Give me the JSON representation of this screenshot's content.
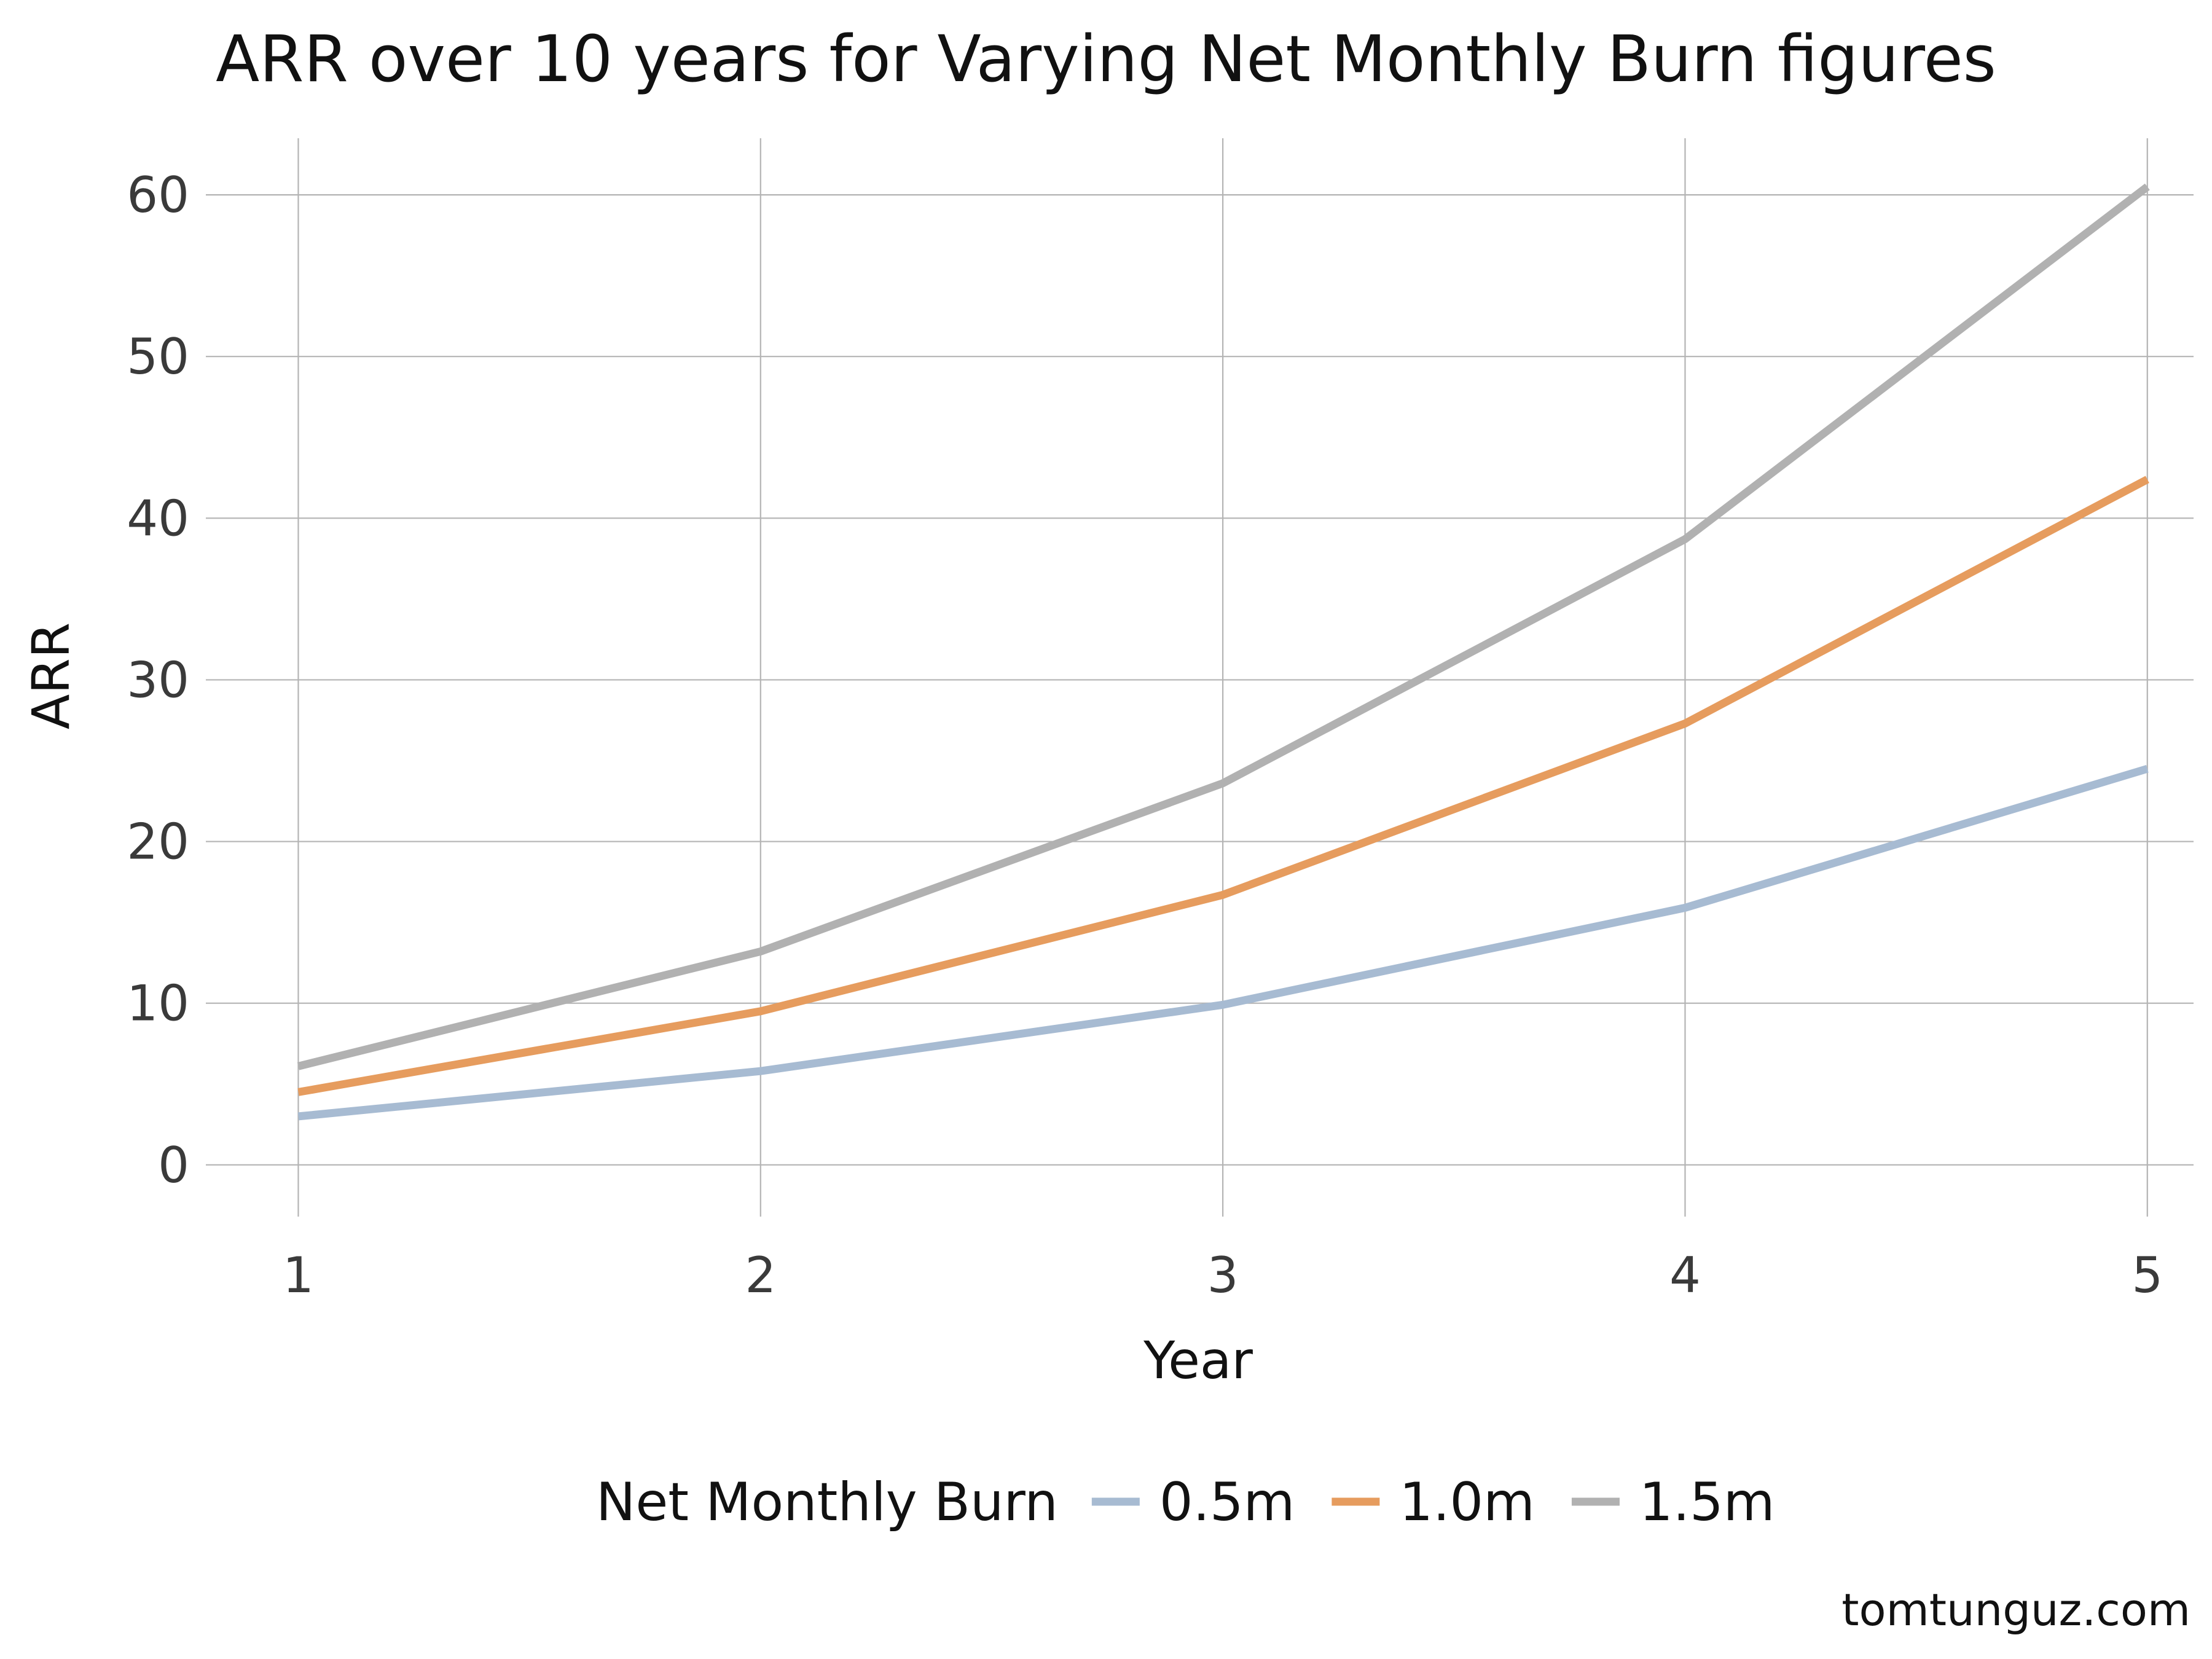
{
  "chart_data": {
    "type": "line",
    "title": "ARR over 10 years for Varying Net Monthly Burn figures",
    "xlabel": "Year",
    "ylabel": "ARR",
    "x": [
      1,
      2,
      3,
      4,
      5
    ],
    "xticks": [
      "1",
      "2",
      "3",
      "4",
      "5"
    ],
    "yticks": [
      "0",
      "10",
      "20",
      "30",
      "40",
      "50",
      "60"
    ],
    "xlim": [
      0.8,
      5.1
    ],
    "ylim": [
      -3.2,
      63.5
    ],
    "grid": true,
    "legend": {
      "title": "Net Monthly Burn",
      "placement": "bottom"
    },
    "series": [
      {
        "name": "0.5m",
        "color": "#a7bbd2",
        "values": [
          3.0,
          5.8,
          9.9,
          15.9,
          24.5
        ]
      },
      {
        "name": "1.0m",
        "color": "#e69c5e",
        "values": [
          4.5,
          9.5,
          16.7,
          27.3,
          42.4
        ]
      },
      {
        "name": "1.5m",
        "color": "#b1b1b1",
        "values": [
          6.1,
          13.2,
          23.6,
          38.7,
          60.5
        ]
      }
    ],
    "annotation": "tomtunguz.com"
  }
}
